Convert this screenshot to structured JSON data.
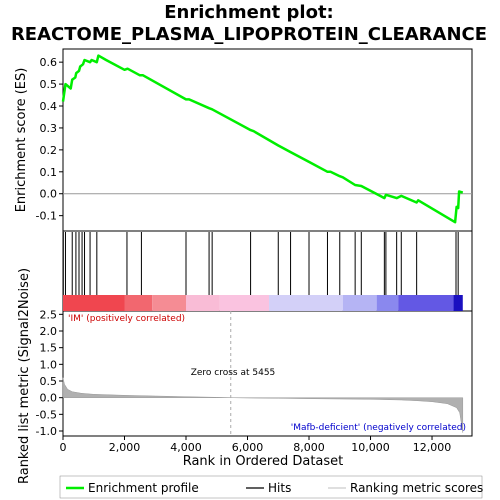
{
  "chart_data": {
    "type": "line",
    "title_line1": "Enrichment plot:",
    "title_line2": "REACTOME_PLASMA_LIPOPROTEIN_CLEARANCE",
    "xlabel": "Rank in Ordered Dataset",
    "es_panel": {
      "ylabel": "Enrichment score (ES)",
      "ylim": [
        -0.17,
        0.66
      ],
      "yticks": [
        -0.1,
        0.0,
        0.1,
        0.2,
        0.3,
        0.4,
        0.5,
        0.6
      ],
      "ytick_labels": [
        "-0.1",
        "0.0",
        "0.1",
        "0.2",
        "0.3",
        "0.4",
        "0.5",
        "0.6"
      ],
      "line_color": "#00ee00",
      "zero_line": 0.0,
      "profile": [
        [
          0,
          0.42
        ],
        [
          80,
          0.5
        ],
        [
          250,
          0.48
        ],
        [
          300,
          0.52
        ],
        [
          400,
          0.53
        ],
        [
          430,
          0.55
        ],
        [
          520,
          0.56
        ],
        [
          560,
          0.58
        ],
        [
          650,
          0.59
        ],
        [
          700,
          0.61
        ],
        [
          880,
          0.6
        ],
        [
          930,
          0.61
        ],
        [
          1100,
          0.6
        ],
        [
          1150,
          0.63
        ],
        [
          1400,
          0.61
        ],
        [
          2000,
          0.565
        ],
        [
          2100,
          0.57
        ],
        [
          2500,
          0.54
        ],
        [
          2600,
          0.54
        ],
        [
          4000,
          0.43
        ],
        [
          4100,
          0.43
        ],
        [
          4750,
          0.39
        ],
        [
          4850,
          0.385
        ],
        [
          6100,
          0.29
        ],
        [
          6200,
          0.285
        ],
        [
          7000,
          0.22
        ],
        [
          7400,
          0.19
        ],
        [
          8000,
          0.145
        ],
        [
          8600,
          0.1
        ],
        [
          8700,
          0.1
        ],
        [
          9000,
          0.08
        ],
        [
          9100,
          0.075
        ],
        [
          9500,
          0.04
        ],
        [
          9700,
          0.035
        ],
        [
          10450,
          -0.02
        ],
        [
          10500,
          -0.005
        ],
        [
          10850,
          -0.02
        ],
        [
          11000,
          -0.01
        ],
        [
          11500,
          -0.04
        ],
        [
          11550,
          -0.03
        ],
        [
          12750,
          -0.13
        ],
        [
          12800,
          -0.06
        ],
        [
          12850,
          -0.065
        ],
        [
          12880,
          0.01
        ],
        [
          13000,
          0.005
        ]
      ]
    },
    "hits_panel": {
      "hit_ranks": [
        10,
        80,
        300,
        420,
        520,
        620,
        700,
        880,
        1100,
        2080,
        2550,
        4000,
        4750,
        4850,
        6100,
        7000,
        7400,
        8000,
        8600,
        9000,
        9500,
        9700,
        10450,
        10500,
        10850,
        11000,
        11500,
        12780,
        12850
      ]
    },
    "metric_panel": {
      "ylabel": "Ranked list metric (Signal2Noise)",
      "ylim": [
        -1.15,
        2.6
      ],
      "yticks": [
        -1.0,
        -0.5,
        0.0,
        0.5,
        1.0,
        1.5,
        2.0,
        2.5
      ],
      "ytick_labels": [
        "-1.0",
        "-0.5",
        "0.0",
        "0.5",
        "1.0",
        "1.5",
        "2.0",
        "2.5"
      ],
      "fill_color": "#b0b0b0",
      "zero_cross_rank": 5455,
      "zero_cross_label": "Zero cross at 5455",
      "positive_label": "'IM' (positively correlated)",
      "negative_label": "'Mafb-deficient' (negatively correlated)",
      "positive_color": "#cc0000",
      "negative_color": "#0000cc",
      "metric_profile": [
        [
          0,
          0.6
        ],
        [
          50,
          0.4
        ],
        [
          150,
          0.25
        ],
        [
          300,
          0.18
        ],
        [
          600,
          0.13
        ],
        [
          1000,
          0.1
        ],
        [
          2000,
          0.07
        ],
        [
          3000,
          0.05
        ],
        [
          4000,
          0.03
        ],
        [
          5000,
          0.01
        ],
        [
          5455,
          0.0
        ],
        [
          6000,
          -0.01
        ],
        [
          7000,
          -0.02
        ],
        [
          8000,
          -0.03
        ],
        [
          9000,
          -0.04
        ],
        [
          10000,
          -0.05
        ],
        [
          11000,
          -0.07
        ],
        [
          11500,
          -0.09
        ],
        [
          12000,
          -0.12
        ],
        [
          12500,
          -0.18
        ],
        [
          12800,
          -0.3
        ],
        [
          12900,
          -0.45
        ],
        [
          13000,
          -1.05
        ]
      ]
    },
    "xaxis": {
      "xlim": [
        0,
        13300
      ],
      "n_ranks": 13000,
      "xticks": [
        0,
        2000,
        4000,
        6000,
        8000,
        10000,
        12000
      ],
      "xtick_labels": [
        "0",
        "2,000",
        "4,000",
        "6,000",
        "8,000",
        "10,000",
        "12,000"
      ]
    },
    "heat_bar": [
      {
        "from": 0,
        "to": 2000,
        "color": "#f0464f"
      },
      {
        "from": 2000,
        "to": 2900,
        "color": "#f2676f"
      },
      {
        "from": 2900,
        "to": 4000,
        "color": "#f58c94"
      },
      {
        "from": 4000,
        "to": 5100,
        "color": "#f9bcd6"
      },
      {
        "from": 5100,
        "to": 6700,
        "color": "#fac3e0"
      },
      {
        "from": 6700,
        "to": 9100,
        "color": "#d3d0f8"
      },
      {
        "from": 9100,
        "to": 10200,
        "color": "#b5b4f4"
      },
      {
        "from": 10200,
        "to": 10900,
        "color": "#8a88ee"
      },
      {
        "from": 10900,
        "to": 12700,
        "color": "#6358e4"
      },
      {
        "from": 12700,
        "to": 13000,
        "color": "#1a10c0"
      }
    ],
    "legend": [
      {
        "label": "Enrichment profile",
        "color": "#00ee00",
        "kind": "thick"
      },
      {
        "label": "Hits",
        "color": "#000000",
        "kind": "thin"
      },
      {
        "label": "Ranking metric scores",
        "color": "#cccccc",
        "kind": "thin"
      }
    ]
  }
}
